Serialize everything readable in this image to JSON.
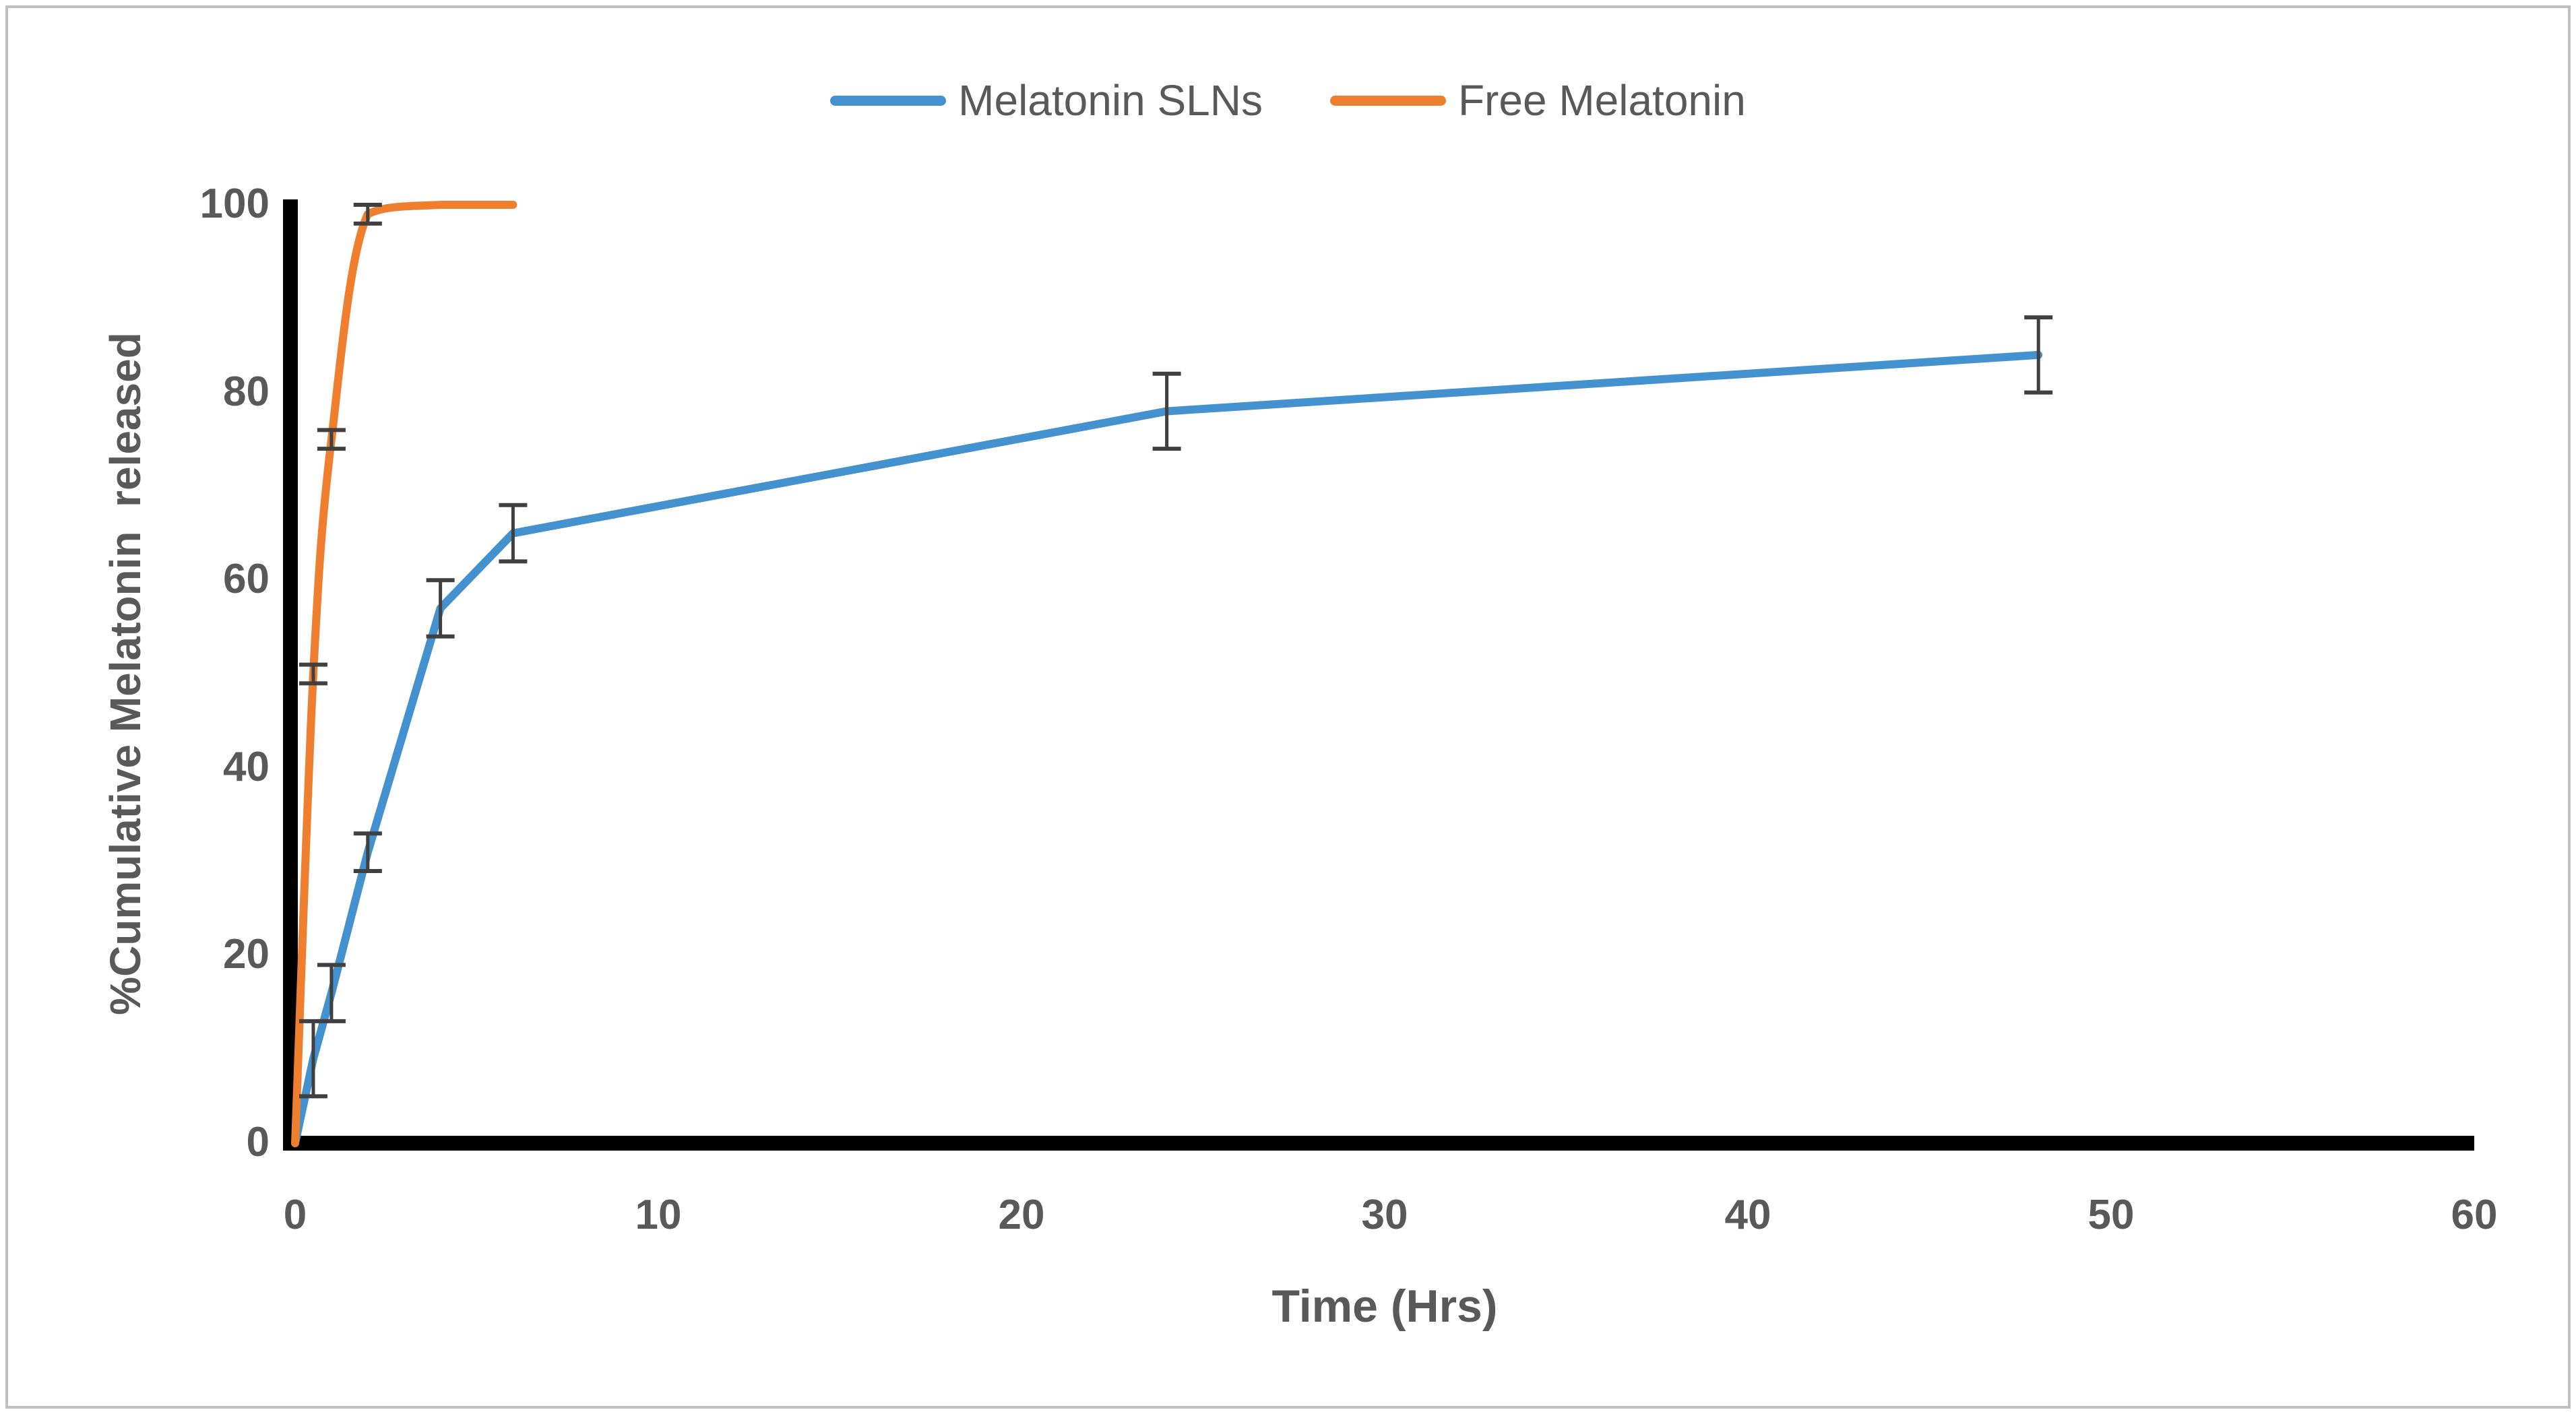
{
  "figure": {
    "background": "#ffffff",
    "border_color": "#bfbfbf"
  },
  "legend": {
    "position": "top-center",
    "items": [
      {
        "label": "Melatonin SLNs",
        "color": "#4391CF"
      },
      {
        "label": "Free Melatonin",
        "color": "#EF7E2E"
      }
    ]
  },
  "chart_data": {
    "type": "line",
    "title": "",
    "xlabel": "Time (Hrs)",
    "ylabel": "%Cumulative Melatonin  released",
    "xlim": [
      0,
      60
    ],
    "ylim": [
      0,
      100
    ],
    "x_ticks": [
      0,
      10,
      20,
      30,
      40,
      50,
      60
    ],
    "y_ticks": [
      0,
      20,
      40,
      60,
      80,
      100
    ],
    "grid": false,
    "legend_position": "top-center",
    "axis_color": "#000000",
    "tick_label_color": "#595959",
    "error_bar_color": "#404040",
    "series": [
      {
        "name": "Melatonin SLNs",
        "color": "#4391CF",
        "smooth": false,
        "x": [
          0,
          0.5,
          1,
          2,
          4,
          6,
          24,
          48
        ],
        "y": [
          0,
          9,
          16,
          31,
          57,
          65,
          78,
          84
        ],
        "yerr": [
          0,
          4,
          3,
          2,
          3,
          3,
          4,
          4
        ]
      },
      {
        "name": "Free Melatonin",
        "color": "#EF7E2E",
        "smooth": true,
        "x": [
          0,
          0.5,
          1,
          2,
          4,
          6
        ],
        "y": [
          0,
          50,
          75,
          99,
          100,
          100
        ],
        "yerr": [
          0,
          1,
          1,
          1,
          0,
          0
        ]
      }
    ]
  }
}
